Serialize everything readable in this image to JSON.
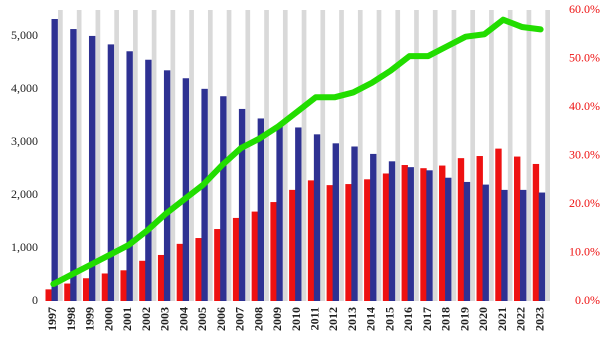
{
  "chart_data": {
    "type": "bar",
    "categories": [
      "1997",
      "1998",
      "1999",
      "2000",
      "2001",
      "2002",
      "2003",
      "2004",
      "2005",
      "2006",
      "2007",
      "2008",
      "2009",
      "2010",
      "2011",
      "2012",
      "2013",
      "2014",
      "2015",
      "2016",
      "2017",
      "2018",
      "2019",
      "2020",
      "2021",
      "2022",
      "2023"
    ],
    "series": [
      {
        "type": "bar",
        "color": "#ee1111",
        "values": [
          220,
          330,
          430,
          520,
          580,
          760,
          870,
          1080,
          1190,
          1360,
          1570,
          1690,
          1870,
          2100,
          2280,
          2190,
          2210,
          2300,
          2410,
          2570,
          2510,
          2560,
          2700,
          2740,
          2880,
          2730,
          2590
        ]
      },
      {
        "type": "bar",
        "color": "#2e3192",
        "values": [
          5330,
          5140,
          5010,
          4850,
          4720,
          4560,
          4360,
          4210,
          4010,
          3870,
          3630,
          3450,
          3300,
          3280,
          3150,
          2980,
          2920,
          2780,
          2640,
          2530,
          2470,
          2330,
          2250,
          2200,
          2100,
          2100,
          2050
        ]
      },
      {
        "type": "line",
        "axis": "y2",
        "color": "#22dd00",
        "values": [
          3.5,
          5.5,
          7.5,
          9.5,
          11.5,
          14.5,
          18,
          21,
          24,
          28,
          31.5,
          33.5,
          36,
          39,
          42,
          42,
          43,
          45,
          47.5,
          50.5,
          50.5,
          52.5,
          54.5,
          55,
          58,
          56.5,
          56
        ]
      }
    ],
    "ylim": [
      0,
      5500
    ],
    "yticks": [
      0,
      {
        "value": 1000,
        "label": "1,000"
      },
      {
        "value": 2000,
        "label": "2,000"
      },
      {
        "value": 3000,
        "label": "3,000"
      },
      {
        "value": 4000,
        "label": "4,000"
      },
      {
        "value": 5000,
        "label": "5,000"
      }
    ],
    "y2lim": [
      0,
      60
    ],
    "y2ticks": [
      {
        "value": 0,
        "label": "0.0%"
      },
      {
        "value": 10,
        "label": "10.0%"
      },
      {
        "value": 20,
        "label": "20.0%"
      },
      {
        "value": 30,
        "label": "30.0%"
      },
      {
        "value": 40,
        "label": "40.0%"
      },
      {
        "value": 50,
        "label": "50.0%"
      },
      {
        "value": 60,
        "label": "60.0%"
      }
    ],
    "y2_tick_color": "#ee1111",
    "band_color": "#d9d9d9"
  }
}
